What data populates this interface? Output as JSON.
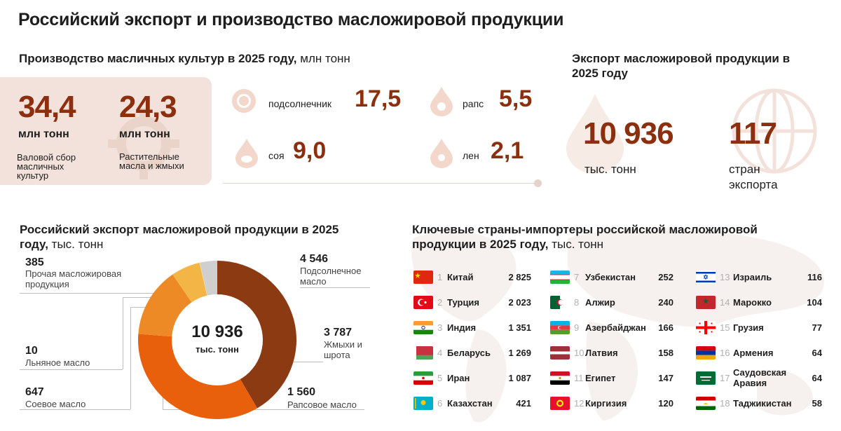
{
  "title": "Российский экспорт и производство масложировой продукции",
  "production": {
    "heading": "Производство масличных культур в 2025 году,",
    "heading_unit": "млн тонн",
    "gross": {
      "value": "34,4",
      "unit": "млн тонн",
      "label": "Валовой сбор масличных культур"
    },
    "oils": {
      "value": "24,3",
      "unit": "млн тонн",
      "label": "Растительные масла и жмыхи"
    },
    "crops": [
      {
        "name": "подсолнечник",
        "value": "17,5",
        "icon": "sunflower-icon"
      },
      {
        "name": "рапс",
        "value": "5,5",
        "icon": "rapeseed-drop-icon"
      },
      {
        "name": "соя",
        "value": "9,0",
        "icon": "soy-drop-icon"
      },
      {
        "name": "лен",
        "value": "2,1",
        "icon": "flax-drop-icon"
      }
    ]
  },
  "export_summary": {
    "heading": "Экспорт масложировой продукции в 2025 году",
    "volume": {
      "value": "10 936",
      "unit": "тыс. тонн"
    },
    "countries": {
      "value": "117",
      "unit": "стран экспорта"
    }
  },
  "donut": {
    "heading": "Российский экспорт масложировой продукции в 2025 году,",
    "heading_unit": "тыс. тонн",
    "center_value": "10 936",
    "center_unit": "тыс. тонн",
    "labels": [
      {
        "value": "4 546",
        "name": "Подсолнечное масло"
      },
      {
        "value": "3 787",
        "name": "Жмыхи и шрота"
      },
      {
        "value": "1 560",
        "name": "Рапсовое масло"
      },
      {
        "value": "647",
        "name": "Соевое масло"
      },
      {
        "value": "10",
        "name": "Льняное масло"
      },
      {
        "value": "385",
        "name": "Прочая масложировая продукция"
      }
    ]
  },
  "chart_data": {
    "type": "pie",
    "title": "Российский экспорт масложировой продукции в 2025 году, тыс. тонн",
    "total": 10936,
    "categories": [
      "Подсолнечное масло",
      "Жмыхи и шрота",
      "Рапсовое масло",
      "Соевое масло",
      "Льняное масло",
      "Прочая масложировая продукция"
    ],
    "values": [
      4546,
      3787,
      1560,
      647,
      10,
      385
    ],
    "colors": [
      "#8b3a12",
      "#e8600c",
      "#ee8a25",
      "#f3b545",
      "#f6d9a0",
      "#cfcfcf"
    ]
  },
  "importers": {
    "heading": "Ключевые страны-импортеры российской масложировой продукции в 2025 году,",
    "heading_unit": "тыс. тонн",
    "rows": [
      {
        "rank": "1",
        "name": "Китай",
        "value": "2 825",
        "flag": "china-flag-icon"
      },
      {
        "rank": "2",
        "name": "Турция",
        "value": "2 023",
        "flag": "turkey-flag-icon"
      },
      {
        "rank": "3",
        "name": "Индия",
        "value": "1 351",
        "flag": "india-flag-icon"
      },
      {
        "rank": "4",
        "name": "Беларусь",
        "value": "1 269",
        "flag": "belarus-flag-icon"
      },
      {
        "rank": "5",
        "name": "Иран",
        "value": "1 087",
        "flag": "iran-flag-icon"
      },
      {
        "rank": "6",
        "name": "Казахстан",
        "value": "421",
        "flag": "kazakhstan-flag-icon"
      },
      {
        "rank": "7",
        "name": "Узбекистан",
        "value": "252",
        "flag": "uzbekistan-flag-icon"
      },
      {
        "rank": "8",
        "name": "Алжир",
        "value": "240",
        "flag": "algeria-flag-icon"
      },
      {
        "rank": "9",
        "name": "Азербайджан",
        "value": "166",
        "flag": "azerbaijan-flag-icon"
      },
      {
        "rank": "10",
        "name": "Латвия",
        "value": "158",
        "flag": "latvia-flag-icon"
      },
      {
        "rank": "11",
        "name": "Египет",
        "value": "147",
        "flag": "egypt-flag-icon"
      },
      {
        "rank": "12",
        "name": "Киргизия",
        "value": "120",
        "flag": "kyrgyzstan-flag-icon"
      },
      {
        "rank": "13",
        "name": "Израиль",
        "value": "116",
        "flag": "israel-flag-icon"
      },
      {
        "rank": "14",
        "name": "Марокко",
        "value": "104",
        "flag": "morocco-flag-icon"
      },
      {
        "rank": "15",
        "name": "Грузия",
        "value": "77",
        "flag": "georgia-flag-icon"
      },
      {
        "rank": "16",
        "name": "Армения",
        "value": "64",
        "flag": "armenia-flag-icon"
      },
      {
        "rank": "17",
        "name": "Саудовская Аравия",
        "value": "64",
        "flag": "saudi-arabia-flag-icon"
      },
      {
        "rank": "18",
        "name": "Таджикистан",
        "value": "58",
        "flag": "tajikistan-flag-icon"
      }
    ]
  },
  "colors": {
    "accent": "#8b2f0e",
    "box": "#f2e2db",
    "icon": "#f2d7ca"
  }
}
